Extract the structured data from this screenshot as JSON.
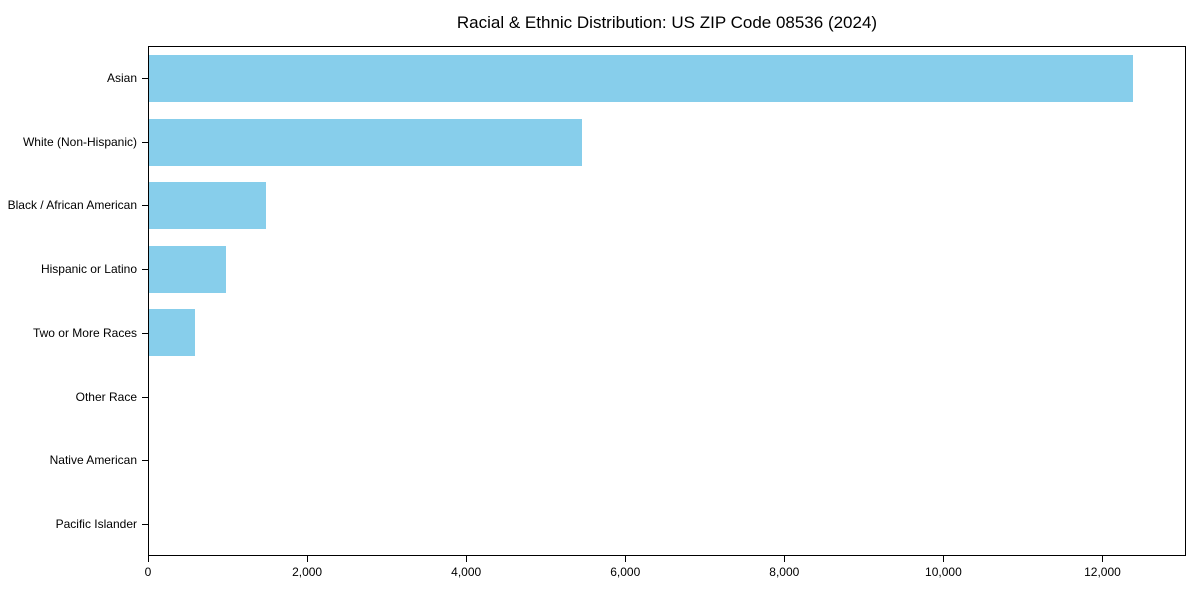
{
  "chart_data": {
    "type": "bar",
    "orientation": "horizontal",
    "title": "Racial & Ethnic Distribution: US ZIP Code 08536 (2024)",
    "categories": [
      "Asian",
      "White (Non-Hispanic)",
      "Black / African American",
      "Hispanic or Latino",
      "Two or More Races",
      "Other Race",
      "Native American",
      "Pacific Islander"
    ],
    "values": [
      12400,
      5450,
      1480,
      970,
      580,
      0,
      0,
      0
    ],
    "xlabel": "",
    "ylabel": "",
    "xlim": [
      0,
      13050
    ],
    "x_ticks": [
      0,
      2000,
      4000,
      6000,
      8000,
      10000,
      12000
    ],
    "x_tick_labels": [
      "0",
      "2,000",
      "4,000",
      "6,000",
      "8,000",
      "10,000",
      "12,000"
    ],
    "grid": false,
    "legend": null,
    "bar_color": "#87CEEB",
    "spine_color": "#000000",
    "text_color": "#000000",
    "background_color": "#ffffff"
  }
}
